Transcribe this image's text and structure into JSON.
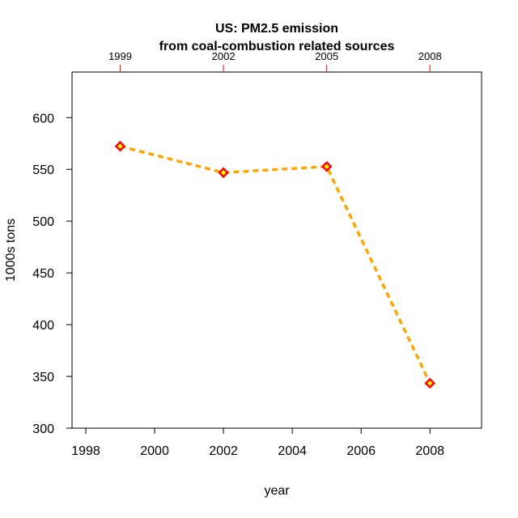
{
  "chart_data": {
    "type": "line",
    "title_line1": "US: PM2.5 emission",
    "title_line2": "from coal-combustion related sources",
    "xlabel": "year",
    "ylabel": "1000s tons",
    "x": [
      1999,
      2002,
      2005,
      2008
    ],
    "series": [
      {
        "values": [
          572.3,
          546.8,
          552.7,
          343.4
        ]
      }
    ],
    "xlim": [
      1997.6,
      2009.5
    ],
    "ylim": [
      300,
      644
    ],
    "x_ticks": [
      1998,
      2000,
      2002,
      2004,
      2006,
      2008
    ],
    "y_ticks": [
      300,
      350,
      400,
      450,
      500,
      550,
      600
    ],
    "top_ticks": [
      "1999",
      "2002",
      "2005",
      "2008"
    ],
    "line_color": "#FFA500",
    "marker_edge_color": "#FF0000",
    "marker_fill_color": "#FFFF00",
    "top_tick_color": "#FF0000",
    "grid": false,
    "legend": "none"
  }
}
